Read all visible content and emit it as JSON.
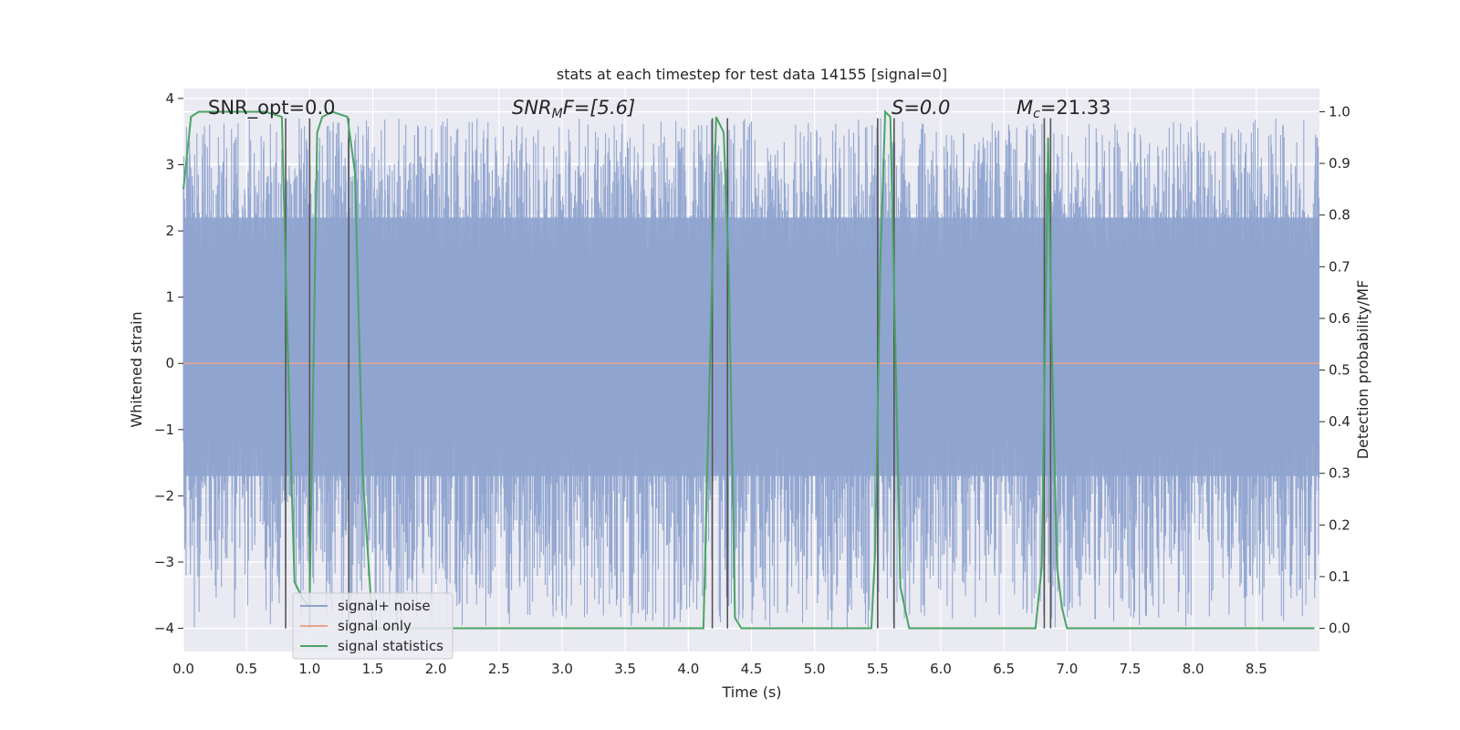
{
  "chart_data": {
    "type": "line",
    "title": "stats at each timestep for test data 14155 [signal=0]",
    "xlabel": "Time (s)",
    "ylabel": "Whitened strain",
    "y2label": "Detection probability/MF",
    "xlim": [
      0.0,
      9.0
    ],
    "ylim": [
      -4.35,
      4.15
    ],
    "y2lim": [
      -0.045,
      1.045
    ],
    "xticks": [
      "0.0",
      "0.5",
      "1.0",
      "1.5",
      "2.0",
      "2.5",
      "3.0",
      "3.5",
      "4.0",
      "4.5",
      "5.0",
      "5.5",
      "6.0",
      "6.5",
      "7.0",
      "7.5",
      "8.0",
      "8.5"
    ],
    "yticks": [
      "4",
      "3",
      "2",
      "1",
      "0",
      "−1",
      "−2",
      "−3",
      "−4"
    ],
    "y2ticks": [
      "1.0",
      "0.9",
      "0.8",
      "0.7",
      "0.6",
      "0.5",
      "0.4",
      "0.3",
      "0.2",
      "0.1",
      "0.0"
    ],
    "grid": true,
    "legend_position": "lower-left",
    "annotations": {
      "snr_opt": "SNR_opt=0.0",
      "snr_mf_base": "SNR",
      "snr_mf_sub": "M",
      "snr_mf_rest": "F=[5.6]",
      "s_value": "S=0.0",
      "mc_base": "M",
      "mc_sub": "c",
      "mc_rest": "=21.33"
    },
    "series": [
      {
        "name": "signal+ noise",
        "color": "#8ea3cf",
        "style": "dense-noise",
        "core_band": [
          -1.7,
          2.2
        ],
        "peak_range": [
          -4.0,
          3.7
        ]
      },
      {
        "name": "signal only",
        "color": "#e8a48a",
        "x": [
          0.0,
          9.0
        ],
        "y": [
          0.0,
          0.0
        ]
      },
      {
        "name": "signal statistics",
        "color": "#4aa564",
        "axis": "right",
        "x": [
          0.0,
          0.06,
          0.12,
          0.25,
          0.45,
          0.65,
          0.78,
          0.82,
          0.88,
          0.94,
          1.0,
          1.06,
          1.1,
          1.18,
          1.3,
          1.36,
          1.42,
          1.5,
          1.6,
          2.0,
          3.0,
          4.0,
          4.12,
          4.18,
          4.22,
          4.28,
          4.32,
          4.37,
          4.42,
          4.5,
          5.0,
          5.45,
          5.48,
          5.52,
          5.56,
          5.6,
          5.64,
          5.68,
          5.75,
          6.0,
          6.5,
          6.75,
          6.8,
          6.85,
          6.88,
          6.92,
          6.96,
          7.0,
          7.5,
          8.0,
          8.5,
          8.96
        ],
        "y": [
          0.85,
          0.99,
          1.0,
          1.0,
          1.0,
          1.0,
          0.99,
          0.6,
          0.09,
          0.06,
          0.04,
          0.96,
          0.99,
          1.0,
          0.99,
          0.88,
          0.3,
          0.0,
          0.0,
          0.0,
          0.0,
          0.0,
          0.0,
          0.6,
          0.99,
          0.96,
          0.7,
          0.02,
          0.0,
          0.0,
          0.0,
          0.0,
          0.15,
          0.7,
          1.0,
          0.99,
          0.55,
          0.08,
          0.0,
          0.0,
          0.0,
          0.0,
          0.12,
          0.95,
          0.55,
          0.12,
          0.04,
          0.0,
          0.0,
          0.0,
          0.0,
          0.0
        ]
      }
    ],
    "vertical_lines": {
      "color": "#555555",
      "lines": [
        {
          "x": 0.81,
          "y1": -4.0,
          "y2": 3.7
        },
        {
          "x": 1.0,
          "y1": -4.0,
          "y2": 3.7
        },
        {
          "x": 1.31,
          "y1": -4.0,
          "y2": 3.7
        },
        {
          "x": 4.19,
          "y1": -4.0,
          "y2": 3.7
        },
        {
          "x": 4.31,
          "y1": -4.0,
          "y2": 3.7
        },
        {
          "x": 5.5,
          "y1": -4.0,
          "y2": 3.7
        },
        {
          "x": 5.63,
          "y1": -4.0,
          "y2": 3.7
        },
        {
          "x": 6.82,
          "y1": -4.0,
          "y2": 3.7
        },
        {
          "x": 6.87,
          "y1": -4.0,
          "y2": 3.7
        }
      ]
    },
    "noise_seed": 14155
  }
}
